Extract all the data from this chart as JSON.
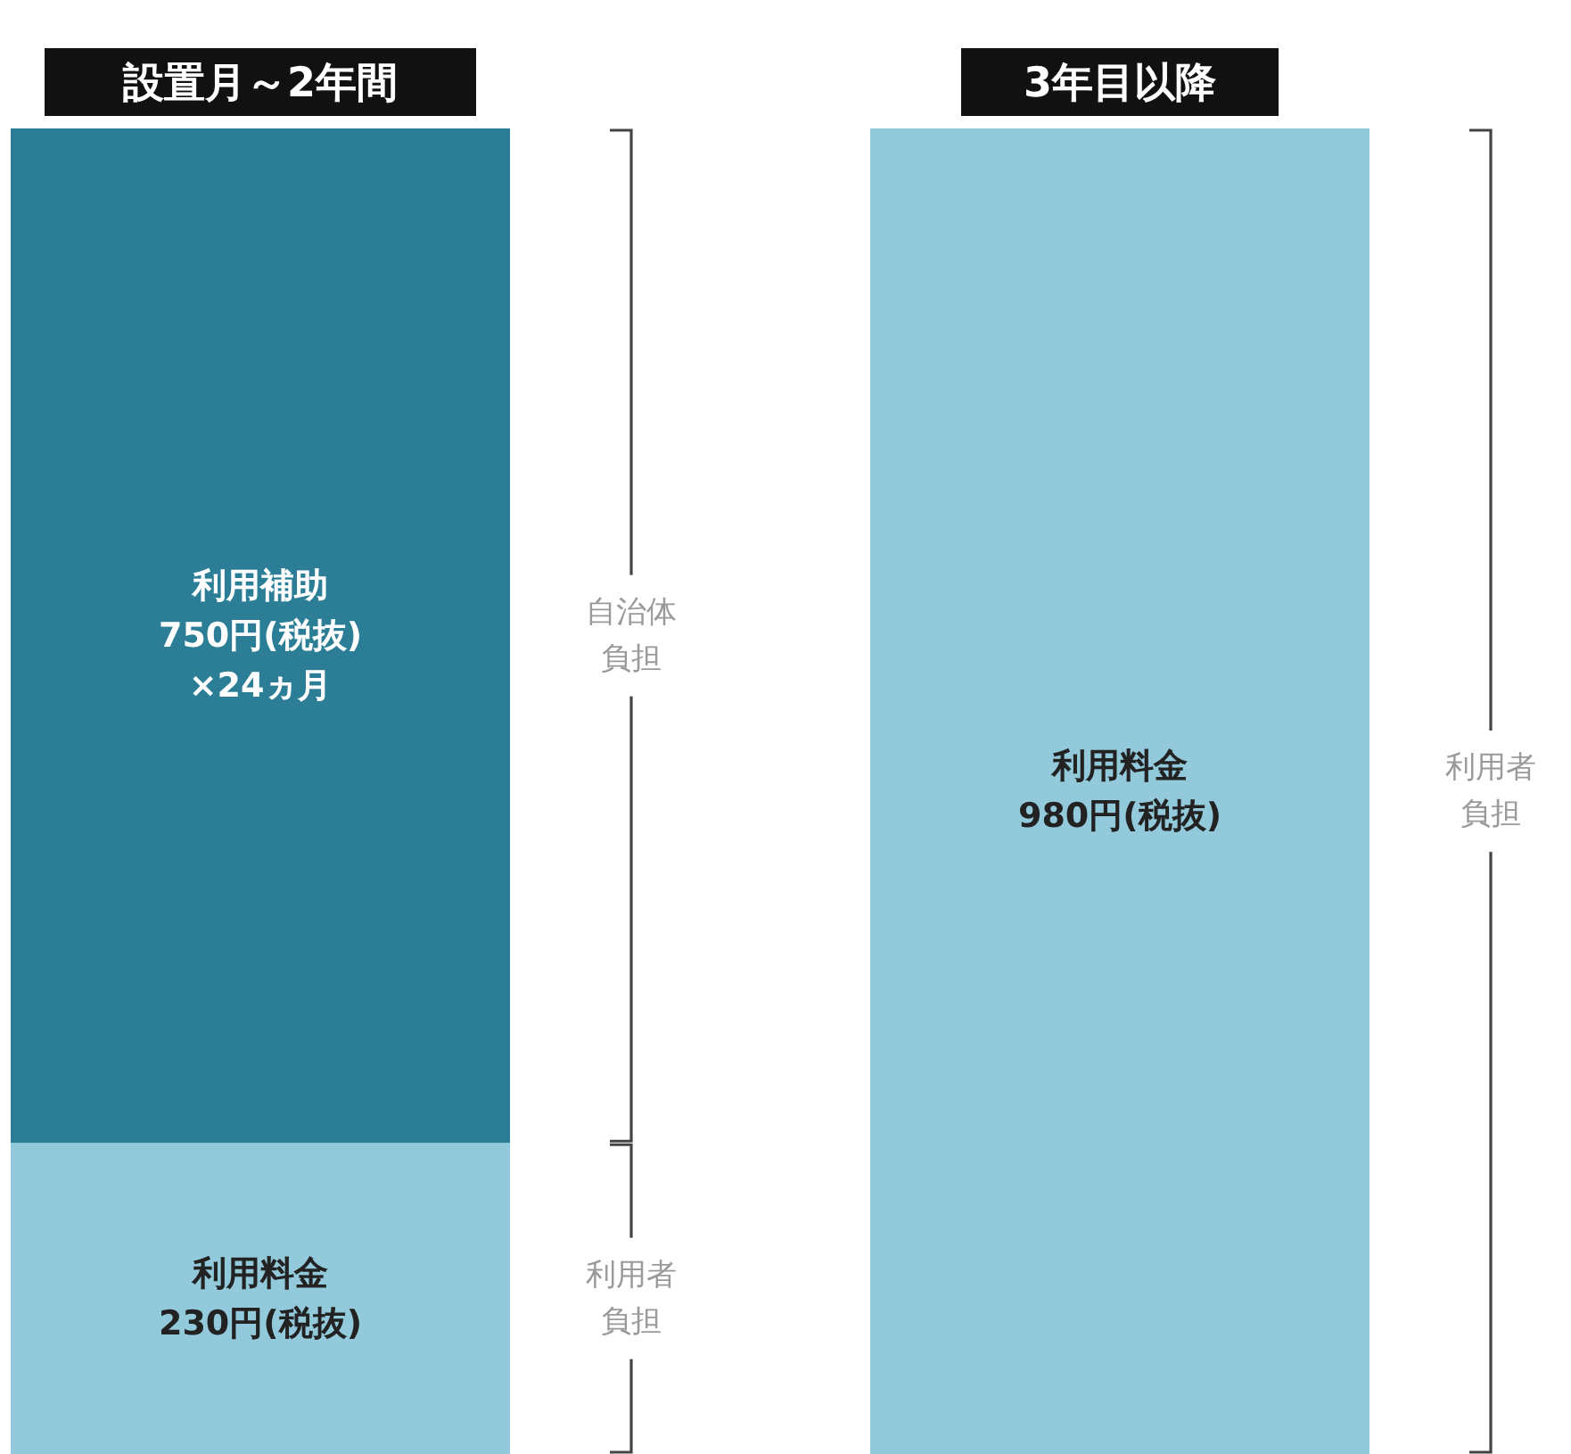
{
  "chart_data": {
    "type": "bar",
    "stacked": true,
    "categories": [
      "設置月～2年間",
      "3年目以降"
    ],
    "series": [
      {
        "color": "#93cadb",
        "values": [
          230,
          980
        ],
        "value_labels": [
          "利用料金\n230円(税抜)",
          "利用料金\n980円(税抜)"
        ]
      },
      {
        "color": "#2b7e96",
        "values": [
          750,
          null
        ],
        "value_labels": [
          "利用補助\n750円(税抜)\n×24ヵ月",
          null
        ]
      }
    ],
    "annotations": [
      "自治体負担",
      "利用者負担",
      "利用者負担"
    ]
  }
}
